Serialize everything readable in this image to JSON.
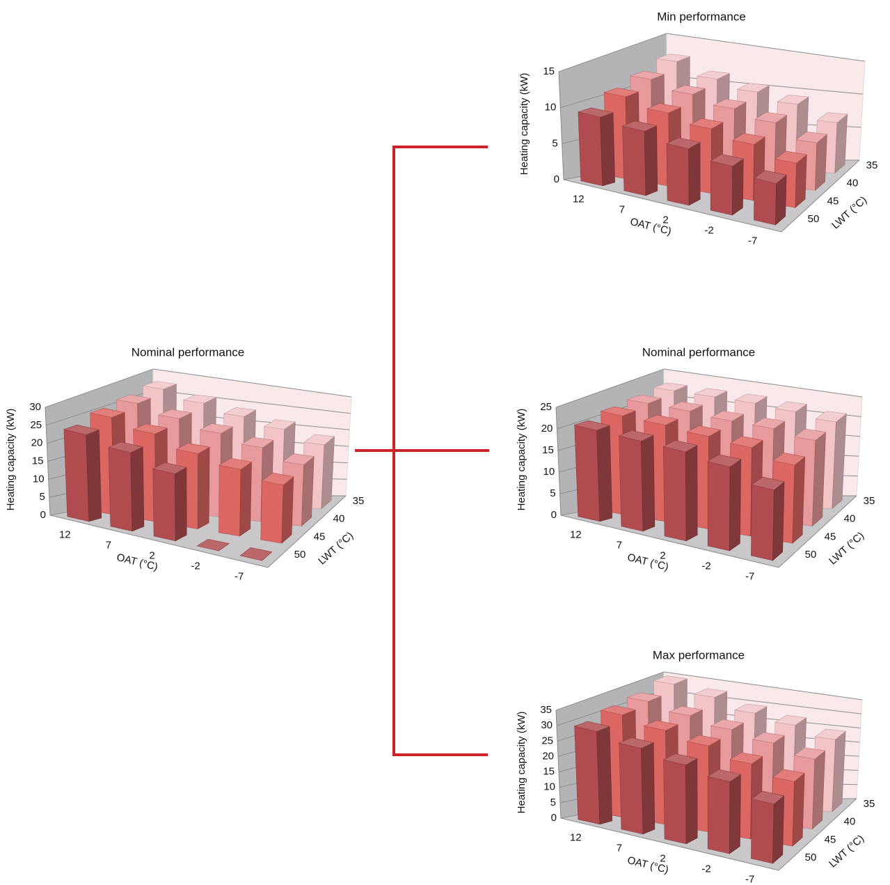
{
  "chart_data": [
    {
      "type": "bar3d",
      "title": "Nominal performance",
      "y_label": "Heating capacity (kW)",
      "x_label": "OAT (°C)",
      "z_label": "LWT (°C)",
      "categories": [
        "12",
        "7",
        "2",
        "-2",
        "-7"
      ],
      "series": [
        {
          "name": "35",
          "color": "#f2c4c8",
          "values": [
            28,
            26,
            24,
            22,
            19
          ]
        },
        {
          "name": "40",
          "color": "#e8999c",
          "values": [
            27,
            25,
            23,
            21,
            18
          ]
        },
        {
          "name": "45",
          "color": "#dc6662",
          "values": [
            26,
            24,
            21,
            19,
            17
          ]
        },
        {
          "name": "50",
          "color": "#b04c50",
          "values": [
            24,
            22,
            19,
            0,
            0
          ]
        }
      ],
      "ylim": [
        0,
        30
      ],
      "yticks": [
        0,
        5,
        10,
        15,
        20,
        25,
        30
      ],
      "grid": true
    },
    {
      "type": "bar3d",
      "title": "Min performance",
      "y_label": "Heating capacity (kW)",
      "x_label": "OAT (°C)",
      "z_label": "LWT (°C)",
      "categories": [
        "12",
        "7",
        "2",
        "-2",
        "-7"
      ],
      "series": [
        {
          "name": "35",
          "color": "#f2c4c8",
          "values": [
            13,
            11.5,
            10.5,
            9.5,
            7.5
          ]
        },
        {
          "name": "40",
          "color": "#e8999c",
          "values": [
            12,
            11,
            10,
            9,
            7
          ]
        },
        {
          "name": "45",
          "color": "#dc6662",
          "values": [
            11,
            10,
            9,
            8,
            6.5
          ]
        },
        {
          "name": "50",
          "color": "#b04c50",
          "values": [
            9.5,
            9,
            8,
            7,
            6
          ]
        }
      ],
      "ylim": [
        0,
        15
      ],
      "yticks": [
        0,
        5,
        10,
        15
      ],
      "grid": true
    },
    {
      "type": "bar3d",
      "title": "Nominal performance",
      "y_label": "Heating capacity (kW)",
      "x_label": "OAT (°C)",
      "z_label": "LWT (°C)",
      "categories": [
        "12",
        "7",
        "2",
        "-2",
        "-7"
      ],
      "series": [
        {
          "name": "35",
          "color": "#f2c4c8",
          "values": [
            23,
            23,
            23,
            22.5,
            21.5
          ]
        },
        {
          "name": "40",
          "color": "#e8999c",
          "values": [
            22.5,
            22.5,
            22,
            22,
            21
          ]
        },
        {
          "name": "45",
          "color": "#dc6662",
          "values": [
            22,
            22,
            21.5,
            21,
            19
          ]
        },
        {
          "name": "50",
          "color": "#b04c50",
          "values": [
            21,
            21,
            21,
            20,
            17
          ]
        }
      ],
      "ylim": [
        0,
        25
      ],
      "yticks": [
        0,
        5,
        10,
        15,
        20,
        25
      ],
      "grid": true
    },
    {
      "type": "bar3d",
      "title": "Max performance",
      "y_label": "Heating capacity (kW)",
      "x_label": "OAT (°C)",
      "z_label": "LWT (°C)",
      "categories": [
        "12",
        "7",
        "2",
        "-2",
        "-7"
      ],
      "series": [
        {
          "name": "35",
          "color": "#f2c4c8",
          "values": [
            35,
            33,
            30,
            28,
            25
          ]
        },
        {
          "name": "40",
          "color": "#e8999c",
          "values": [
            33,
            31,
            29,
            27,
            24
          ]
        },
        {
          "name": "45",
          "color": "#dc6662",
          "values": [
            32,
            30,
            28,
            25,
            22
          ]
        },
        {
          "name": "50",
          "color": "#b04c50",
          "values": [
            30,
            28,
            26,
            24,
            20
          ]
        }
      ],
      "ylim": [
        0,
        35
      ],
      "yticks": [
        0,
        5,
        10,
        15,
        20,
        25,
        30,
        35
      ],
      "grid": true
    }
  ]
}
